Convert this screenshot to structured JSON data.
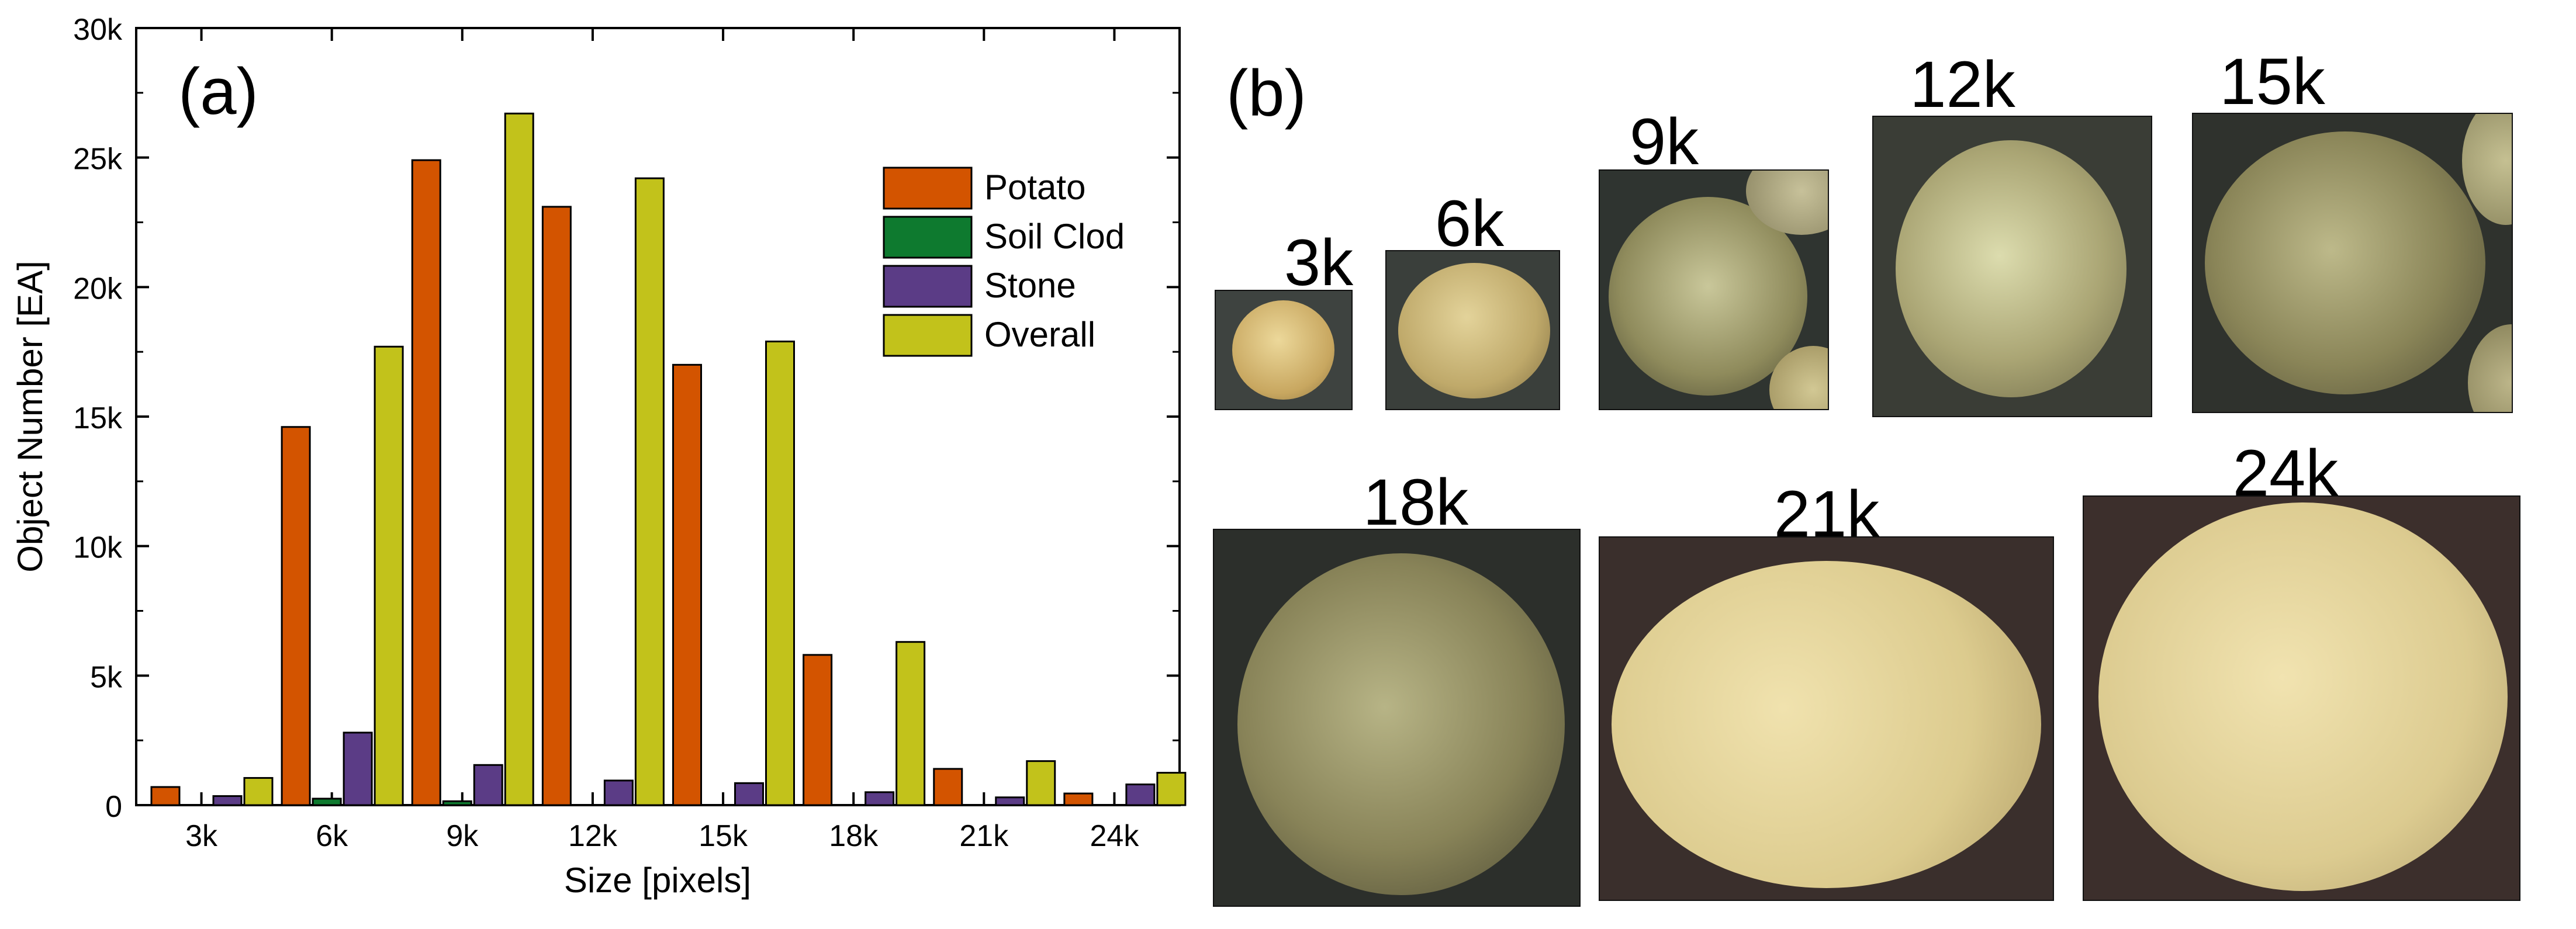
{
  "chart_data": {
    "type": "bar",
    "panel_label": "(a)",
    "categories": [
      "3k",
      "6k",
      "9k",
      "12k",
      "15k",
      "18k",
      "21k",
      "24k"
    ],
    "series": [
      {
        "name": "Potato",
        "color": "#d35400",
        "values": [
          700,
          14600,
          24900,
          23100,
          17000,
          5800,
          1400,
          450
        ]
      },
      {
        "name": "Soil Clod",
        "color": "#0e7a2f",
        "values": [
          0,
          250,
          150,
          0,
          0,
          0,
          0,
          0
        ]
      },
      {
        "name": "Stone",
        "color": "#5b3c86",
        "values": [
          350,
          2800,
          1550,
          950,
          850,
          500,
          300,
          800
        ]
      },
      {
        "name": "Overall",
        "color": "#c2c21b",
        "values": [
          1050,
          17700,
          26700,
          24200,
          17900,
          6300,
          1700,
          1250
        ]
      }
    ],
    "xlabel": "Size [pixels]",
    "ylabel": "Object Number [EA]",
    "ylim": [
      0,
      30000
    ],
    "yticks": [
      0,
      5000,
      10000,
      15000,
      20000,
      25000,
      30000
    ],
    "ytick_labels": [
      "0",
      "5k",
      "10k",
      "15k",
      "20k",
      "25k",
      "30k"
    ],
    "grid": false,
    "legend_position": "top-right"
  },
  "photos": {
    "panel_label": "(b)",
    "items": [
      {
        "label": "3k"
      },
      {
        "label": "6k"
      },
      {
        "label": "9k"
      },
      {
        "label": "12k"
      },
      {
        "label": "15k"
      },
      {
        "label": "18k"
      },
      {
        "label": "21k"
      },
      {
        "label": "24k"
      }
    ]
  }
}
